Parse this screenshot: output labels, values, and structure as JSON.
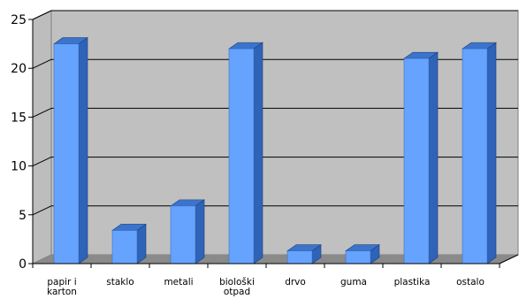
{
  "chart_data": {
    "type": "bar",
    "categories": [
      "papir i karton",
      "staklo",
      "metali",
      "biološki otpad",
      "drvo",
      "guma",
      "plastika",
      "ostalo"
    ],
    "category_lines": [
      [
        "papir i",
        "karton"
      ],
      [
        "staklo"
      ],
      [
        "metali"
      ],
      [
        "biološki",
        "otpad"
      ],
      [
        "drvo"
      ],
      [
        "guma"
      ],
      [
        "plastika"
      ],
      [
        "ostalo"
      ]
    ],
    "values": [
      22.5,
      3.4,
      5.9,
      22.0,
      1.3,
      1.3,
      21.0,
      22.0
    ],
    "title": "",
    "xlabel": "",
    "ylabel": "",
    "ylim": [
      0,
      25
    ],
    "yticks": [
      "0",
      "5",
      "10",
      "15",
      "20",
      "25"
    ],
    "grid": true,
    "legend": "none",
    "style": "3d",
    "colors": {
      "bar_front": "#66a3ff",
      "bar_side": "#2f63b8",
      "bar_top": "#3c74cc",
      "back_wall": "#c0c0c0",
      "side_wall": "#bdbdbd",
      "floor": "#8a8a8a",
      "gridline": "#000000"
    }
  }
}
